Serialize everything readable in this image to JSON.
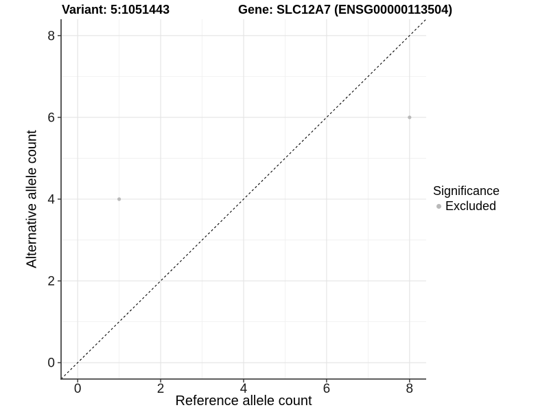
{
  "titles": {
    "variant": "Variant: 5:1051443",
    "gene": "Gene: SLC12A7 (ENSG00000113504)"
  },
  "chart_data": {
    "type": "scatter",
    "title_left": "Variant: 5:1051443",
    "title_right": "Gene: SLC12A7 (ENSG00000113504)",
    "xlabel": "Reference allele count",
    "ylabel": "Alternative allele count",
    "xlim": [
      -0.4,
      8.4
    ],
    "ylim": [
      -0.4,
      8.4
    ],
    "xticks": [
      0,
      2,
      4,
      6,
      8
    ],
    "yticks": [
      0,
      2,
      4,
      6,
      8
    ],
    "minor_xticks": [
      1,
      3,
      5,
      7
    ],
    "minor_yticks": [
      1,
      3,
      5,
      7
    ],
    "grid": true,
    "identity_line": {
      "style": "dashed",
      "color": "#000000",
      "from": [
        -0.4,
        -0.4
      ],
      "to": [
        8.4,
        8.4
      ]
    },
    "series": [
      {
        "name": "Excluded",
        "color": "#b9b9b9",
        "points": [
          [
            1,
            4
          ],
          [
            8,
            6
          ]
        ]
      }
    ],
    "legend": {
      "title": "Significance",
      "position": "right",
      "entries": [
        {
          "label": "Excluded",
          "color": "#b9b9b9"
        }
      ]
    },
    "style": {
      "axis_line_color": "#464646",
      "tick_color": "#333333",
      "tick_label_color": "#1a1a1a",
      "grid_major_color": "#e3e3e3",
      "grid_minor_color": "#efefef",
      "background": "#ffffff"
    }
  }
}
